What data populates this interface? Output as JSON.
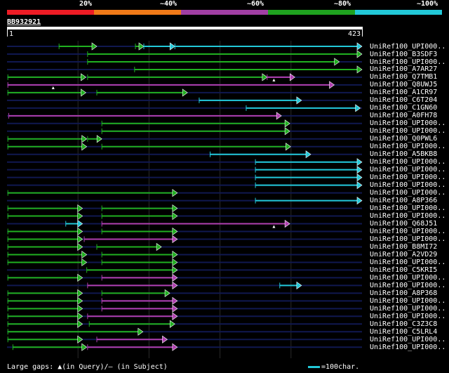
{
  "header": {
    "percent_labels": [
      "20%",
      "~40%",
      "~60%",
      "~80%",
      "~100%"
    ],
    "band_colors": [
      "#ee1c25",
      "#f07a18",
      "#a13fa4",
      "#1fa21f",
      "#22c8d8"
    ]
  },
  "query": {
    "name": "BB932921",
    "start": "1",
    "end": "423",
    "length": 423
  },
  "colors": {
    "green": "#20b020",
    "cyan": "#22c8d8",
    "magenta": "#b03fb0",
    "backbone": "#101850"
  },
  "legend": {
    "gaps_text": "Large gaps: ▲(in Query)/– (in Subject)",
    "scale_text": "=100char."
  },
  "hits": [
    {
      "name": "UniRef100_UPI000..",
      "segs": [
        {
          "s": 62,
          "e": 107,
          "c": "g"
        },
        {
          "s": 153,
          "e": 163,
          "c": "g"
        },
        {
          "s": 163,
          "e": 200,
          "c": "c"
        },
        {
          "s": 200,
          "e": 423,
          "c": "c"
        }
      ]
    },
    {
      "name": "UniRef100_B3SDF3",
      "segs": [
        {
          "s": 96,
          "e": 423,
          "c": "g"
        }
      ]
    },
    {
      "name": "UniRef100_UPI000..",
      "segs": [
        {
          "s": 96,
          "e": 396,
          "c": "g"
        }
      ]
    },
    {
      "name": "UniRef100_A7AR27",
      "segs": [
        {
          "s": 152,
          "e": 423,
          "c": "g"
        }
      ]
    },
    {
      "name": "UniRef100_Q7TMB1",
      "segs": [
        {
          "s": 1,
          "e": 94,
          "c": "g"
        },
        {
          "s": 96,
          "e": 310,
          "c": "g"
        },
        {
          "s": 310,
          "e": 343,
          "c": "m"
        }
      ],
      "tris": [
        {
          "p": 318
        }
      ]
    },
    {
      "name": "UniRef100_Q8UWJ5",
      "segs": [
        {
          "s": 1,
          "e": 390,
          "c": "m"
        }
      ],
      "tris": [
        {
          "p": 55
        }
      ]
    },
    {
      "name": "UniRef100_A1CR97",
      "segs": [
        {
          "s": 1,
          "e": 94,
          "c": "g"
        },
        {
          "s": 107,
          "e": 215,
          "c": "g"
        }
      ]
    },
    {
      "name": "UniRef100_C6T204",
      "segs": [
        {
          "s": 229,
          "e": 351,
          "c": "c"
        }
      ]
    },
    {
      "name": "UniRef100_C1GN60",
      "segs": [
        {
          "s": 285,
          "e": 421,
          "c": "c"
        }
      ]
    },
    {
      "name": "UniRef100_A0FH78",
      "segs": [
        {
          "s": 2,
          "e": 327,
          "c": "m"
        }
      ]
    },
    {
      "name": "UniRef100_UPI000..",
      "segs": [
        {
          "s": 113,
          "e": 337,
          "c": "g"
        }
      ]
    },
    {
      "name": "UniRef100_UPI000..",
      "segs": [
        {
          "s": 113,
          "e": 337,
          "c": "g"
        }
      ]
    },
    {
      "name": "UniRef100_Q0PWL6",
      "segs": [
        {
          "s": 1,
          "e": 95,
          "c": "g"
        },
        {
          "s": 96,
          "e": 113,
          "c": "g"
        }
      ]
    },
    {
      "name": "UniRef100_UPI000..",
      "segs": [
        {
          "s": 1,
          "e": 95,
          "c": "g"
        },
        {
          "s": 113,
          "e": 338,
          "c": "g"
        }
      ]
    },
    {
      "name": "UniRef100_A5BKB8",
      "segs": [
        {
          "s": 242,
          "e": 362,
          "c": "c"
        }
      ]
    },
    {
      "name": "UniRef100_UPI000..",
      "segs": [
        {
          "s": 296,
          "e": 423,
          "c": "c"
        }
      ]
    },
    {
      "name": "UniRef100_UPI000..",
      "segs": [
        {
          "s": 296,
          "e": 423,
          "c": "c"
        }
      ]
    },
    {
      "name": "UniRef100_UPI000..",
      "segs": [
        {
          "s": 296,
          "e": 423,
          "c": "c"
        }
      ]
    },
    {
      "name": "UniRef100_UPI000..",
      "segs": [
        {
          "s": 296,
          "e": 423,
          "c": "c"
        }
      ]
    },
    {
      "name": "UniRef100_UPI000..",
      "segs": [
        {
          "s": 1,
          "e": 203,
          "c": "g"
        }
      ]
    },
    {
      "name": "UniRef100_A8P366",
      "segs": [
        {
          "s": 296,
          "e": 423,
          "c": "c"
        }
      ]
    },
    {
      "name": "UniRef100_UPI000..",
      "segs": [
        {
          "s": 1,
          "e": 90,
          "c": "g"
        },
        {
          "s": 113,
          "e": 203,
          "c": "g"
        }
      ]
    },
    {
      "name": "UniRef100_UPI000..",
      "segs": [
        {
          "s": 1,
          "e": 90,
          "c": "g"
        },
        {
          "s": 113,
          "e": 203,
          "c": "g"
        }
      ]
    },
    {
      "name": "UniRef100_Q68J51",
      "segs": [
        {
          "s": 70,
          "e": 90,
          "c": "c"
        },
        {
          "s": 113,
          "e": 337,
          "c": "m"
        }
      ],
      "tris": [
        {
          "p": 318
        }
      ]
    },
    {
      "name": "UniRef100_UPI000..",
      "segs": [
        {
          "s": 1,
          "e": 90,
          "c": "g"
        },
        {
          "s": 113,
          "e": 203,
          "c": "g"
        }
      ]
    },
    {
      "name": "UniRef100_UPI000..",
      "segs": [
        {
          "s": 1,
          "e": 90,
          "c": "g"
        },
        {
          "s": 92,
          "e": 203,
          "c": "m"
        }
      ]
    },
    {
      "name": "UniRef100_B8MI72",
      "segs": [
        {
          "s": 1,
          "e": 90,
          "c": "g"
        },
        {
          "s": 107,
          "e": 184,
          "c": "g"
        }
      ]
    },
    {
      "name": "UniRef100_A2VD29",
      "segs": [
        {
          "s": 1,
          "e": 95,
          "c": "g"
        },
        {
          "s": 113,
          "e": 203,
          "c": "g"
        }
      ]
    },
    {
      "name": "UniRef100_UPI000..",
      "segs": [
        {
          "s": 1,
          "e": 95,
          "c": "g"
        },
        {
          "s": 113,
          "e": 203,
          "c": "g"
        }
      ]
    },
    {
      "name": "UniRef100_C5KRI5",
      "segs": [
        {
          "s": 95,
          "e": 203,
          "c": "g"
        }
      ]
    },
    {
      "name": "UniRef100_UPI000..",
      "segs": [
        {
          "s": 1,
          "e": 90,
          "c": "g"
        },
        {
          "s": 113,
          "e": 203,
          "c": "m"
        }
      ]
    },
    {
      "name": "UniRef100_UPI000..",
      "segs": [
        {
          "s": 96,
          "e": 203,
          "c": "m"
        },
        {
          "s": 325,
          "e": 351,
          "c": "c"
        }
      ]
    },
    {
      "name": "UniRef100_A8P368",
      "segs": [
        {
          "s": 1,
          "e": 90,
          "c": "g"
        },
        {
          "s": 113,
          "e": 194,
          "c": "g"
        }
      ]
    },
    {
      "name": "UniRef100_UPI000..",
      "segs": [
        {
          "s": 1,
          "e": 90,
          "c": "g"
        },
        {
          "s": 113,
          "e": 203,
          "c": "m"
        }
      ]
    },
    {
      "name": "UniRef100_UPI000..",
      "segs": [
        {
          "s": 1,
          "e": 90,
          "c": "g"
        },
        {
          "s": 113,
          "e": 203,
          "c": "m"
        }
      ]
    },
    {
      "name": "UniRef100_UPI000..",
      "segs": [
        {
          "s": 1,
          "e": 90,
          "c": "g"
        },
        {
          "s": 96,
          "e": 203,
          "c": "m"
        }
      ]
    },
    {
      "name": "UniRef100_C3Z3C8",
      "segs": [
        {
          "s": 1,
          "e": 90,
          "c": "g"
        },
        {
          "s": 98,
          "e": 200,
          "c": "g"
        }
      ]
    },
    {
      "name": "UniRef100_C5LRL4",
      "segs": [
        {
          "s": 1,
          "e": 162,
          "c": "g"
        }
      ]
    },
    {
      "name": "UniRef100_UPI000..",
      "segs": [
        {
          "s": 1,
          "e": 90,
          "c": "g"
        },
        {
          "s": 107,
          "e": 191,
          "c": "m"
        }
      ]
    },
    {
      "name": "UniRef100_UPI000..",
      "segs": [
        {
          "s": 7,
          "e": 95,
          "c": "g"
        },
        {
          "s": 96,
          "e": 203,
          "c": "m"
        }
      ]
    }
  ]
}
